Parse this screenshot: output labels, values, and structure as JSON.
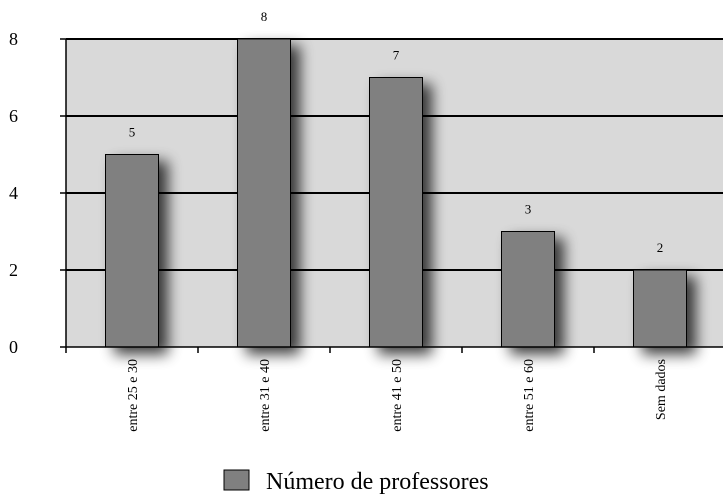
{
  "chart_data": {
    "type": "bar",
    "categories": [
      "entre 25 e 30",
      "entre 31 e 40",
      "entre 41 e 50",
      "entre 51 e 60",
      "Sem dados"
    ],
    "series": [
      {
        "name": "Número de professores",
        "values": [
          5,
          8,
          7,
          3,
          2
        ]
      }
    ],
    "data_labels": [
      "5",
      "8",
      "7",
      "3",
      "2"
    ],
    "title": "",
    "xlabel": "",
    "ylabel": "",
    "ylim": [
      0,
      8
    ],
    "yticks": [
      0,
      2,
      4,
      6,
      8
    ],
    "grid": true,
    "legend_position": "bottom",
    "colors": {
      "bar": "#808080",
      "bar_stroke": "#000000",
      "plot_background": "#d9d9d9",
      "gridline": "#000000"
    }
  }
}
